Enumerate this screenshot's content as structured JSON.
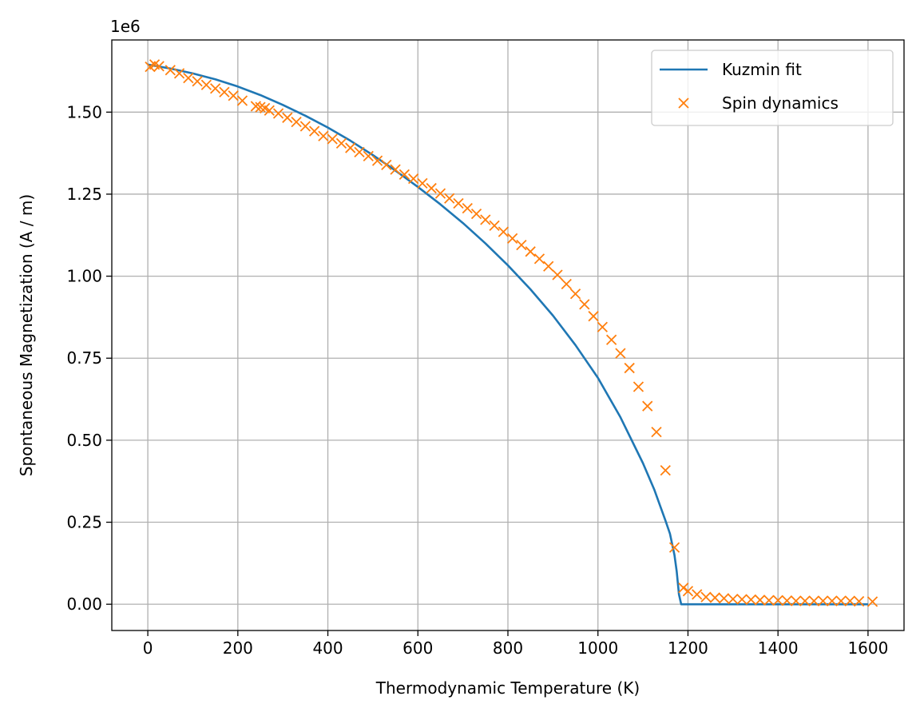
{
  "chart_data": {
    "type": "line",
    "xlabel": "Thermodynamic Temperature (K)",
    "ylabel": "Spontaneous Magnetization (A / m)",
    "y_offset_label": "1e6",
    "xlim": [
      -80,
      1680
    ],
    "ylim": [
      -0.08,
      1.72
    ],
    "y_scale_factor": 1000000,
    "grid": true,
    "legend_position": "top-right",
    "x_ticks": [
      0,
      200,
      400,
      600,
      800,
      1000,
      1200,
      1400,
      1600
    ],
    "x_tick_labels": [
      "0",
      "200",
      "400",
      "600",
      "800",
      "1000",
      "1200",
      "1400",
      "1600"
    ],
    "y_ticks": [
      0.0,
      0.25,
      0.5,
      0.75,
      1.0,
      1.25,
      1.5
    ],
    "y_tick_labels": [
      "0.00",
      "0.25",
      "0.50",
      "0.75",
      "1.00",
      "1.25",
      "1.50"
    ],
    "series": [
      {
        "name": "Kuzmin fit",
        "style": "line",
        "color": "#1f77b4",
        "x": [
          0,
          50,
          100,
          150,
          200,
          250,
          300,
          350,
          400,
          450,
          500,
          550,
          600,
          650,
          700,
          750,
          800,
          850,
          900,
          950,
          1000,
          1050,
          1100,
          1125,
          1150,
          1160,
          1170,
          1175,
          1180,
          1185,
          1200,
          1300,
          1400,
          1500,
          1600
        ],
        "y": [
          1.645,
          1.633,
          1.618,
          1.6,
          1.578,
          1.552,
          1.522,
          1.489,
          1.453,
          1.413,
          1.369,
          1.322,
          1.272,
          1.219,
          1.162,
          1.1,
          1.033,
          0.96,
          0.88,
          0.79,
          0.69,
          0.57,
          0.43,
          0.35,
          0.255,
          0.215,
          0.15,
          0.1,
          0.03,
          0.0,
          0.0,
          0.0,
          0.0,
          0.0,
          0.0
        ]
      },
      {
        "name": "Spin dynamics",
        "style": "marker",
        "marker": "x",
        "color": "#ff7f0e",
        "x": [
          5,
          15,
          25,
          50,
          70,
          90,
          110,
          130,
          150,
          170,
          190,
          210,
          240,
          250,
          260,
          270,
          290,
          310,
          330,
          350,
          370,
          390,
          410,
          430,
          450,
          470,
          490,
          510,
          530,
          550,
          570,
          590,
          610,
          630,
          650,
          670,
          690,
          710,
          730,
          750,
          770,
          790,
          810,
          830,
          850,
          870,
          890,
          910,
          930,
          950,
          970,
          990,
          1010,
          1030,
          1050,
          1070,
          1090,
          1110,
          1130,
          1150,
          1170,
          1190,
          1200,
          1220,
          1240,
          1260,
          1280,
          1300,
          1320,
          1340,
          1360,
          1380,
          1400,
          1420,
          1440,
          1460,
          1480,
          1500,
          1520,
          1540,
          1560,
          1580,
          1610
        ],
        "y": [
          1.638,
          1.645,
          1.64,
          1.628,
          1.618,
          1.604,
          1.594,
          1.583,
          1.572,
          1.561,
          1.55,
          1.535,
          1.518,
          1.515,
          1.512,
          1.505,
          1.496,
          1.483,
          1.47,
          1.457,
          1.442,
          1.427,
          1.418,
          1.405,
          1.391,
          1.378,
          1.366,
          1.352,
          1.339,
          1.325,
          1.31,
          1.297,
          1.283,
          1.268,
          1.252,
          1.237,
          1.222,
          1.207,
          1.19,
          1.172,
          1.154,
          1.135,
          1.115,
          1.095,
          1.075,
          1.053,
          1.03,
          1.004,
          0.976,
          0.946,
          0.914,
          0.878,
          0.845,
          0.806,
          0.765,
          0.72,
          0.663,
          0.604,
          0.525,
          0.408,
          0.173,
          0.05,
          0.04,
          0.03,
          0.022,
          0.02,
          0.018,
          0.016,
          0.015,
          0.014,
          0.013,
          0.012,
          0.012,
          0.011,
          0.01,
          0.01,
          0.01,
          0.01,
          0.01,
          0.01,
          0.01,
          0.009,
          0.008
        ]
      }
    ]
  }
}
